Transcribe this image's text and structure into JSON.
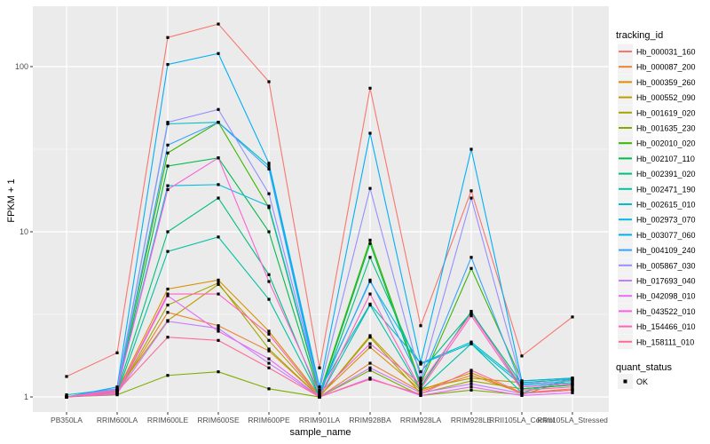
{
  "chart_data": {
    "type": "line",
    "title": "",
    "xlabel": "sample_name",
    "ylabel": "FPKM + 1",
    "y_scale": "log10",
    "y_ticks": [
      1,
      10,
      100
    ],
    "ylim_log": [
      0.91,
      2.37
    ],
    "grid": "on",
    "panel_bg": "#EBEBEB",
    "grid_color": "#FFFFFF",
    "point_shape": "black-square",
    "point_color": "#000000",
    "legend_position": "right",
    "categories": [
      "PB350LA",
      "RRIM600LA",
      "RRIM600LE",
      "RRIM600SE",
      "RRIM600PE",
      "RRIM901LA",
      "RRIM928BA",
      "RRIM928LA",
      "RRIM928LE",
      "RRII105LA_Control",
      "RRII105LA_Stressed"
    ],
    "series": [
      {
        "name": "Hb_000031_160",
        "color": "#F8766D",
        "values": [
          1.33,
          1.85,
          150,
          181,
          81,
          1.5,
          74,
          2.7,
          17.7,
          1.77,
          3.05
        ]
      },
      {
        "name": "Hb_000087_200",
        "color": "#EA8331",
        "values": [
          1.0,
          1.06,
          3.25,
          2.7,
          1.9,
          1.0,
          1.6,
          1.08,
          1.35,
          1.06,
          1.12
        ]
      },
      {
        "name": "Hb_000359_260",
        "color": "#D89000",
        "values": [
          1.0,
          1.08,
          4.5,
          5.1,
          2.5,
          1.02,
          2.0,
          1.1,
          1.4,
          1.05,
          1.1
        ]
      },
      {
        "name": "Hb_000552_090",
        "color": "#C09B00",
        "values": [
          1.0,
          1.1,
          2.9,
          4.8,
          2.2,
          1.0,
          2.35,
          1.12,
          1.3,
          1.22,
          1.28
        ]
      },
      {
        "name": "Hb_001619_020",
        "color": "#A3A500",
        "values": [
          1.0,
          1.05,
          3.6,
          4.9,
          1.95,
          1.0,
          2.3,
          1.05,
          1.25,
          1.12,
          1.18
        ]
      },
      {
        "name": "Hb_001635_230",
        "color": "#7CAE00",
        "values": [
          1.0,
          1.03,
          1.35,
          1.42,
          1.12,
          1.0,
          1.45,
          1.02,
          1.1,
          1.03,
          1.28
        ]
      },
      {
        "name": "Hb_002010_020",
        "color": "#39B600",
        "values": [
          1.0,
          1.1,
          30,
          46,
          14,
          1.05,
          8.9,
          1.2,
          6.0,
          1.25,
          1.3
        ]
      },
      {
        "name": "Hb_002107_110",
        "color": "#00BB4E",
        "values": [
          1.0,
          1.06,
          25,
          28,
          10,
          1.02,
          8.5,
          1.15,
          3.3,
          1.12,
          1.18
        ]
      },
      {
        "name": "Hb_002391_020",
        "color": "#00BF7D",
        "values": [
          1.0,
          1.08,
          10,
          16,
          5.5,
          1.0,
          7.0,
          1.42,
          3.25,
          1.2,
          1.25
        ]
      },
      {
        "name": "Hb_002471_190",
        "color": "#00C1A3",
        "values": [
          1.0,
          1.05,
          7.6,
          9.3,
          3.9,
          1.0,
          3.6,
          1.1,
          2.1,
          1.06,
          1.3
        ]
      },
      {
        "name": "Hb_002615_010",
        "color": "#00BFC4",
        "values": [
          1.03,
          1.12,
          45,
          46,
          25,
          1.1,
          3.65,
          1.6,
          2.15,
          1.22,
          1.28
        ]
      },
      {
        "name": "Hb_002973_070",
        "color": "#00BAE0",
        "values": [
          1.0,
          1.1,
          19,
          19.3,
          14.3,
          1.08,
          5.0,
          1.58,
          2.1,
          1.18,
          1.22
        ]
      },
      {
        "name": "Hb_003077_060",
        "color": "#00B0F6",
        "values": [
          1.0,
          1.15,
          103,
          120,
          26,
          1.15,
          39.5,
          1.62,
          31.6,
          1.25,
          1.3
        ]
      },
      {
        "name": "Hb_004109_240",
        "color": "#35A2FF",
        "values": [
          1.0,
          1.1,
          33.5,
          46,
          24,
          1.05,
          5.1,
          1.25,
          7.0,
          1.15,
          1.2
        ]
      },
      {
        "name": "Hb_005867_030",
        "color": "#9590FF",
        "values": [
          1.0,
          1.12,
          46,
          55,
          17,
          1.1,
          18.3,
          1.3,
          16,
          1.2,
          1.25
        ]
      },
      {
        "name": "Hb_017693_040",
        "color": "#C77CFF",
        "values": [
          1.0,
          1.05,
          2.87,
          2.6,
          1.6,
          1.0,
          1.5,
          1.06,
          1.2,
          1.05,
          1.1
        ]
      },
      {
        "name": "Hb_042098_010",
        "color": "#E76BF3",
        "values": [
          1.0,
          1.04,
          4.1,
          2.5,
          1.7,
          1.0,
          1.3,
          1.02,
          1.15,
          1.02,
          1.06
        ]
      },
      {
        "name": "Hb_043522_010",
        "color": "#FA62DB",
        "values": [
          1.0,
          1.1,
          18,
          28,
          5.0,
          1.05,
          2.1,
          1.2,
          3.2,
          1.15,
          1.2
        ]
      },
      {
        "name": "Hb_154466_010",
        "color": "#FF62BC",
        "values": [
          1.0,
          1.06,
          4.2,
          4.2,
          2.4,
          1.0,
          4.2,
          1.12,
          3.1,
          1.1,
          1.15
        ]
      },
      {
        "name": "Hb_158111_010",
        "color": "#FF6A98",
        "values": [
          1.0,
          1.08,
          2.3,
          2.2,
          1.5,
          1.0,
          1.28,
          1.04,
          1.45,
          1.06,
          1.1
        ]
      }
    ]
  },
  "legend": {
    "color_title": "tracking_id",
    "shape_title": "quant_status",
    "shape_items": [
      {
        "label": "OK",
        "shape": "black-square"
      }
    ],
    "key_bg": "#F2F2F2"
  },
  "axis": {
    "tick_color": "#333333",
    "tick_label_color": "#4D4D4D"
  }
}
